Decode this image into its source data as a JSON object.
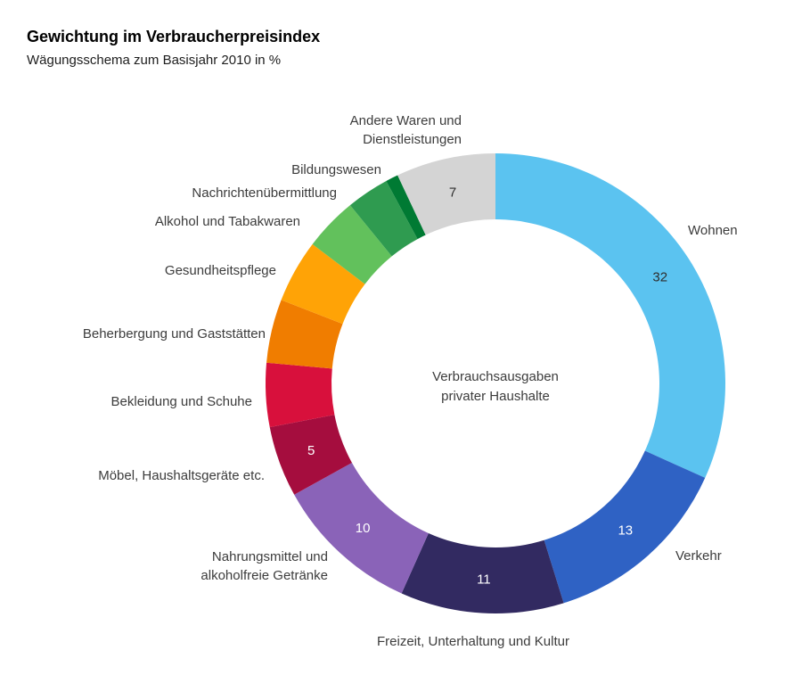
{
  "chart_data": {
    "type": "donut",
    "title": "Gewichtung im Verbraucherpreisindex",
    "subtitle": "Wägungsschema zum Basisjahr 2010 in %",
    "center_label": "Verbrauchsausgaben\nprivater Haushalte",
    "unit": "%",
    "legend_position": "around-ring",
    "segments": [
      {
        "key": "wohnen",
        "label": "Wohnen",
        "share": 31.73,
        "value_label": "32",
        "color": "#5BC3F0",
        "value_color": "#2e2e2e"
      },
      {
        "key": "verkehr",
        "label": "Verkehr",
        "share": 13.47,
        "value_label": "13",
        "color": "#2F62C4",
        "value_color": "#ffffff"
      },
      {
        "key": "freizeit",
        "label": "Freizeit, Unterhaltung und Kultur",
        "share": 11.49,
        "value_label": "11",
        "color": "#322A61",
        "value_color": "#ffffff"
      },
      {
        "key": "nahrungsmittel",
        "label": "Nahrungsmittel und\nalkoholfreie Getränke",
        "share": 10.27,
        "value_label": "10",
        "color": "#8A63B8",
        "value_color": "#ffffff"
      },
      {
        "key": "moebel",
        "label": "Möbel, Haushaltsgeräte etc.",
        "share": 4.98,
        "value_label": "5",
        "color": "#A50D3E",
        "value_color": "#ffffff"
      },
      {
        "key": "bekleidung",
        "label": "Bekleidung und Schuhe",
        "share": 4.49,
        "value_label": "",
        "color": "#D8103C",
        "value_color": "#ffffff"
      },
      {
        "key": "beherbergung",
        "label": "Beherbergung und Gaststätten",
        "share": 4.47,
        "value_label": "",
        "color": "#F07D00",
        "value_color": "#ffffff"
      },
      {
        "key": "gesundheit",
        "label": "Gesundheitspflege",
        "share": 4.44,
        "value_label": "",
        "color": "#FFA306",
        "value_color": "#ffffff"
      },
      {
        "key": "alkohol",
        "label": "Alkohol und Tabakwaren",
        "share": 3.76,
        "value_label": "",
        "color": "#62C15C",
        "value_color": "#ffffff"
      },
      {
        "key": "nachrichten",
        "label": "Nachrichtenübermittlung",
        "share": 3.01,
        "value_label": "",
        "color": "#2F9B50",
        "value_color": "#ffffff"
      },
      {
        "key": "bildung",
        "label": "Bildungswesen",
        "share": 0.88,
        "value_label": "",
        "color": "#007A33",
        "value_color": "#ffffff"
      },
      {
        "key": "andere",
        "label": "Andere Waren und\nDienstleistungen",
        "share": 7.0,
        "value_label": "7",
        "color": "#D4D4D4",
        "value_color": "#2e2e2e"
      }
    ]
  }
}
